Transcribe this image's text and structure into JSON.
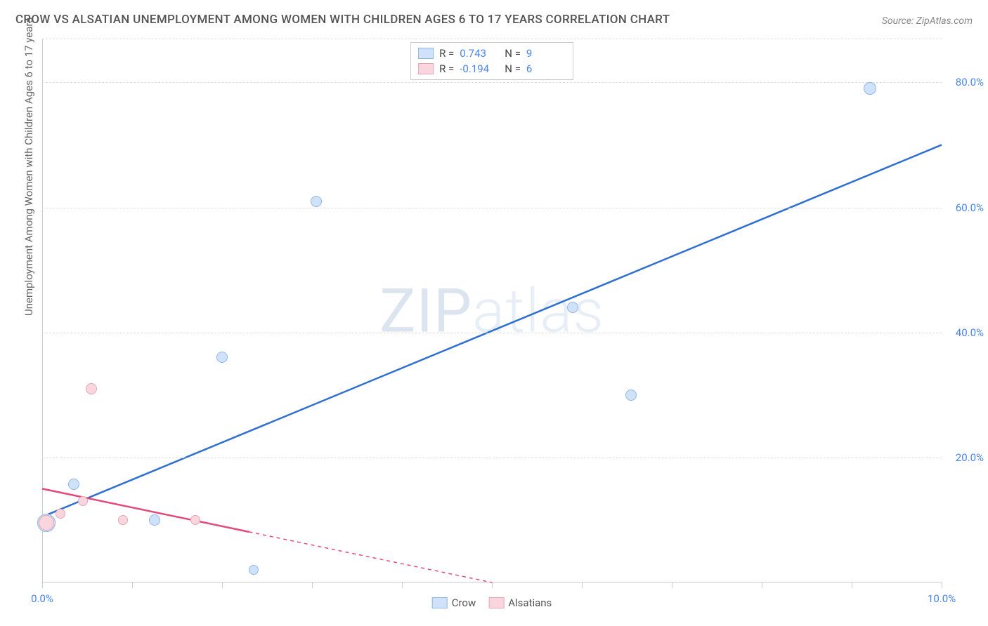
{
  "title": "CROW VS ALSATIAN UNEMPLOYMENT AMONG WOMEN WITH CHILDREN AGES 6 TO 17 YEARS CORRELATION CHART",
  "source": "Source: ZipAtlas.com",
  "ylabel": "Unemployment Among Women with Children Ages 6 to 17 years",
  "watermark_a": "ZIP",
  "watermark_b": "atlas",
  "chart": {
    "type": "scatter",
    "xlim": [
      0,
      10
    ],
    "ylim": [
      0,
      87
    ],
    "x_ticks": [
      0,
      1,
      2,
      3,
      4,
      5,
      6,
      7,
      8,
      9,
      10
    ],
    "x_tick_labels": {
      "0": "0.0%",
      "10": "10.0%"
    },
    "y_ticks": [
      20,
      40,
      60,
      80
    ],
    "y_tick_labels": [
      "20.0%",
      "40.0%",
      "60.0%",
      "80.0%"
    ],
    "background_color": "#ffffff",
    "grid_color": "#dddddd",
    "axis_color": "#cccccc",
    "tick_label_color": "#4a86e8",
    "series": [
      {
        "name": "Crow",
        "fill": "#cfe2f9",
        "stroke": "#8fb7e6",
        "trend_color": "#2f6fd0",
        "trend_width": 2.5,
        "r_value": "0.743",
        "n_value": "9",
        "trend": {
          "x1": 0,
          "y1": 10.5,
          "x2": 10,
          "y2": 70
        },
        "points": [
          {
            "x": 0.05,
            "y": 9.5,
            "r": 13
          },
          {
            "x": 0.35,
            "y": 15.7,
            "r": 8
          },
          {
            "x": 1.25,
            "y": 10.0,
            "r": 8
          },
          {
            "x": 2.35,
            "y": 2.0,
            "r": 7
          },
          {
            "x": 2.0,
            "y": 36.0,
            "r": 8
          },
          {
            "x": 3.05,
            "y": 61.0,
            "r": 8
          },
          {
            "x": 5.9,
            "y": 44.0,
            "r": 8
          },
          {
            "x": 6.55,
            "y": 30.0,
            "r": 8
          },
          {
            "x": 9.2,
            "y": 79.0,
            "r": 9
          }
        ]
      },
      {
        "name": "Alsatians",
        "fill": "#f9d6de",
        "stroke": "#e8a5b5",
        "trend_color": "#e24a7a",
        "trend_width": 2.5,
        "trend_dash_from": 2.3,
        "r_value": "-0.194",
        "n_value": "6",
        "trend": {
          "x1": 0,
          "y1": 15.0,
          "x2": 5.0,
          "y2": 0
        },
        "points": [
          {
            "x": 0.05,
            "y": 9.5,
            "r": 11
          },
          {
            "x": 0.2,
            "y": 11.0,
            "r": 7
          },
          {
            "x": 0.45,
            "y": 13.0,
            "r": 7
          },
          {
            "x": 0.9,
            "y": 10.0,
            "r": 7
          },
          {
            "x": 1.7,
            "y": 10.0,
            "r": 7
          },
          {
            "x": 0.55,
            "y": 31.0,
            "r": 8
          }
        ]
      }
    ],
    "legend_top": [
      {
        "swatch_fill": "#cfe2f9",
        "swatch_stroke": "#8fb7e6",
        "r_label": "R =",
        "r": "0.743",
        "n_label": "N =",
        "n": "9"
      },
      {
        "swatch_fill": "#f9d6de",
        "swatch_stroke": "#e8a5b5",
        "r_label": "R =",
        "r": "-0.194",
        "n_label": "N =",
        "n": "6"
      }
    ],
    "legend_bottom": [
      {
        "swatch_fill": "#cfe2f9",
        "swatch_stroke": "#8fb7e6",
        "label": "Crow"
      },
      {
        "swatch_fill": "#f9d6de",
        "swatch_stroke": "#e8a5b5",
        "label": "Alsatians"
      }
    ]
  }
}
